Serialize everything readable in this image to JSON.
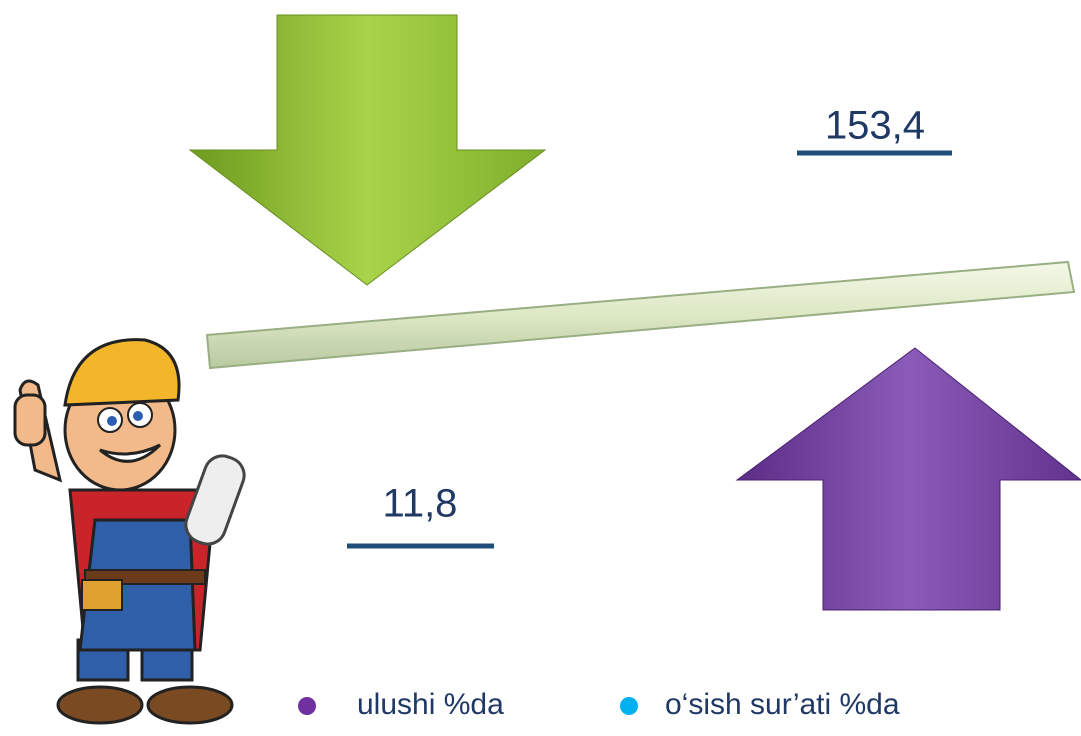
{
  "labels": {
    "top_value": "153,4",
    "bottom_value": "11,8"
  },
  "legend": [
    {
      "label": "ulushi %da",
      "color": "#7030a0"
    },
    {
      "label": "o‘sish sur’ati %da",
      "color": "#00b0f0"
    }
  ]
}
